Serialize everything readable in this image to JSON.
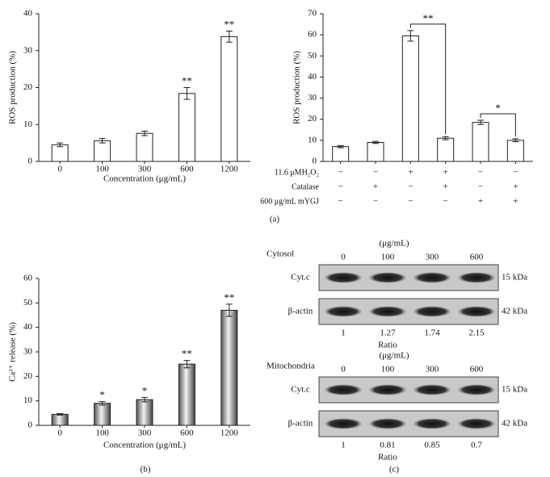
{
  "chart_data": [
    {
      "type": "bar",
      "categories": [
        "0",
        "100",
        "300",
        "600",
        "1200"
      ],
      "values": [
        4.5,
        5.6,
        7.6,
        18.4,
        33.8
      ],
      "errors": [
        0.5,
        0.6,
        0.6,
        1.6,
        1.5
      ],
      "significance": [
        null,
        null,
        null,
        "**",
        "**"
      ],
      "y_label": "ROS production (%)",
      "x_label": "Concentration (μg/mL)",
      "ylim": [
        0,
        40
      ],
      "yticks": [
        0,
        10,
        20,
        30,
        40
      ],
      "color": "#ffffff",
      "panel": "(a)"
    },
    {
      "type": "bar",
      "categories": [
        null,
        null,
        null,
        null,
        null,
        null
      ],
      "values": [
        7,
        9,
        59.5,
        11,
        18.5,
        10
      ],
      "errors": [
        0.5,
        0.5,
        2.5,
        0.7,
        1,
        0.7
      ],
      "y_label": "ROS production (%)",
      "ylim": [
        0,
        70
      ],
      "yticks": [
        0,
        10,
        20,
        30,
        40,
        50,
        60,
        70
      ],
      "color": "#ffffff",
      "brackets": [
        {
          "text": "**",
          "between": [
            2,
            3
          ]
        },
        {
          "text": "*",
          "between": [
            4,
            5
          ]
        }
      ],
      "conditions": [
        {
          "label": "11.6 μMH₂O₂",
          "signs": [
            "−",
            "−",
            "+",
            "+",
            "−",
            "−"
          ]
        },
        {
          "label": "Catalase",
          "signs": [
            "−",
            "+",
            "−",
            "+",
            "−",
            "+"
          ]
        },
        {
          "label": "600 μg/mL mYGJ",
          "signs": [
            "−",
            "−",
            "−",
            "−",
            "+",
            "+"
          ]
        }
      ]
    },
    {
      "type": "bar",
      "categories": [
        "0",
        "100",
        "300",
        "600",
        "1200"
      ],
      "values": [
        4.5,
        9,
        10.5,
        25,
        47
      ],
      "errors": [
        0.3,
        0.7,
        0.9,
        1.5,
        2.5
      ],
      "significance": [
        null,
        "*",
        "*",
        "**",
        "**"
      ],
      "y_label": "Ca²⁺ release (%)",
      "x_label": "Concentration (μg/mL)",
      "ylim": [
        0,
        60
      ],
      "yticks": [
        0,
        10,
        20,
        30,
        40,
        50,
        60
      ],
      "color": "#9a9a9a",
      "panel": "(b)"
    },
    {
      "type": "blot",
      "panel": "(c)",
      "sections": [
        {
          "unit": "(μg/mL)",
          "fraction": "Cytosol",
          "doses": [
            "0",
            "100",
            "300",
            "600"
          ],
          "rows": [
            {
              "label": "Cyt.c",
              "size": "15 kDa"
            },
            {
              "label": "β-actin",
              "size": "42 kDa"
            }
          ],
          "ratios": [
            1,
            1.27,
            1.74,
            2.15
          ],
          "ratio_label": "Ratio"
        },
        {
          "unit": "(μg/mL)",
          "fraction": "Mitochondria",
          "doses": [
            "0",
            "100",
            "300",
            "600"
          ],
          "rows": [
            {
              "label": "Cyt.c",
              "size": "15 kDa"
            },
            {
              "label": "β-actin",
              "size": "42 kDa"
            }
          ],
          "ratios": [
            1,
            0.81,
            0.85,
            0.7
          ],
          "ratio_label": "Ratio"
        }
      ]
    }
  ]
}
